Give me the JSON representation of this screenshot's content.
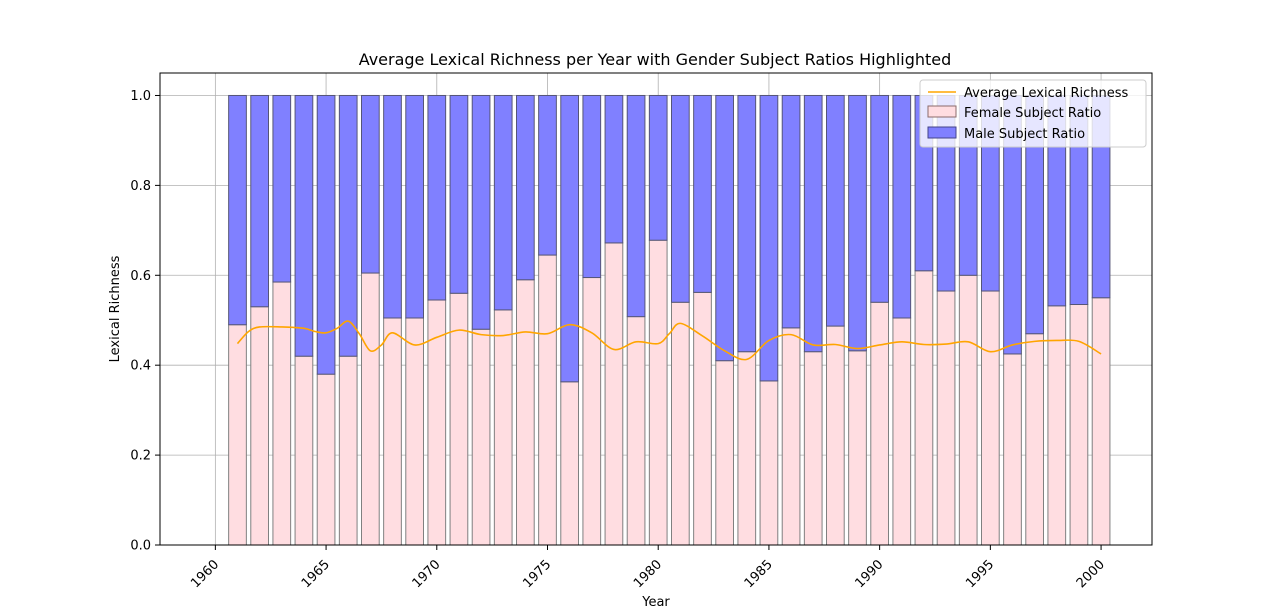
{
  "chart_data": {
    "type": "bar",
    "title": "Average Lexical Richness per Year with Gender Subject Ratios Highlighted",
    "xlabel": "Year",
    "ylabel": "Lexical Richness",
    "xlim": [
      1957.5,
      2002.3
    ],
    "ylim": [
      0,
      1.05
    ],
    "x_ticks": [
      1960,
      1965,
      1970,
      1975,
      1980,
      1985,
      1990,
      1995,
      2000
    ],
    "y_ticks": [
      0.0,
      0.2,
      0.4,
      0.6,
      0.8,
      1.0
    ],
    "grid": true,
    "stacked": true,
    "legend_position": "top-right",
    "years": [
      1961,
      1962,
      1963,
      1964,
      1965,
      1966,
      1967,
      1968,
      1969,
      1970,
      1971,
      1972,
      1973,
      1974,
      1975,
      1976,
      1977,
      1978,
      1979,
      1980,
      1981,
      1982,
      1983,
      1984,
      1985,
      1986,
      1987,
      1988,
      1989,
      1990,
      1991,
      1992,
      1993,
      1994,
      1995,
      1996,
      1997,
      1998,
      1999,
      2000
    ],
    "series": [
      {
        "name": "Female Subject Ratio",
        "color": "#ffdde1",
        "values": [
          0.49,
          0.53,
          0.585,
          0.42,
          0.38,
          0.42,
          0.605,
          0.505,
          0.505,
          0.545,
          0.56,
          0.48,
          0.523,
          0.59,
          0.645,
          0.363,
          0.595,
          0.672,
          0.508,
          0.678,
          0.54,
          0.562,
          0.41,
          0.43,
          0.365,
          0.483,
          0.43,
          0.487,
          0.432,
          0.54,
          0.505,
          0.61,
          0.565,
          0.6,
          0.565,
          0.425,
          0.47,
          0.532,
          0.535,
          0.55
        ]
      },
      {
        "name": "Male Subject Ratio",
        "color": "#8080ff",
        "values": [
          0.51,
          0.47,
          0.415,
          0.58,
          0.62,
          0.58,
          0.395,
          0.495,
          0.495,
          0.455,
          0.44,
          0.52,
          0.477,
          0.41,
          0.355,
          0.637,
          0.405,
          0.328,
          0.492,
          0.322,
          0.46,
          0.438,
          0.59,
          0.57,
          0.635,
          0.517,
          0.57,
          0.513,
          0.568,
          0.46,
          0.495,
          0.39,
          0.435,
          0.4,
          0.435,
          0.575,
          0.53,
          0.468,
          0.465,
          0.45
        ]
      },
      {
        "name": "Average Lexical Richness",
        "color": "#ffa500",
        "type": "line",
        "x": [
          1961,
          1961.5,
          1962,
          1963,
          1964,
          1964.5,
          1965,
          1965.5,
          1966,
          1966.5,
          1967,
          1967.5,
          1968,
          1969,
          1970,
          1971,
          1972,
          1973,
          1974,
          1975,
          1976,
          1977,
          1978,
          1979,
          1980,
          1980.5,
          1981,
          1982,
          1983,
          1984,
          1985,
          1986,
          1987,
          1988,
          1989,
          1990,
          1991,
          1992,
          1993,
          1994,
          1995,
          1996,
          1997,
          1998,
          1999,
          2000
        ],
        "values": [
          0.448,
          0.475,
          0.485,
          0.485,
          0.482,
          0.475,
          0.472,
          0.482,
          0.498,
          0.47,
          0.432,
          0.445,
          0.472,
          0.445,
          0.462,
          0.478,
          0.468,
          0.466,
          0.474,
          0.47,
          0.49,
          0.472,
          0.435,
          0.452,
          0.448,
          0.47,
          0.493,
          0.465,
          0.432,
          0.413,
          0.455,
          0.468,
          0.445,
          0.446,
          0.437,
          0.445,
          0.452,
          0.446,
          0.447,
          0.452,
          0.43,
          0.445,
          0.453,
          0.455,
          0.453,
          0.425
        ]
      }
    ]
  }
}
